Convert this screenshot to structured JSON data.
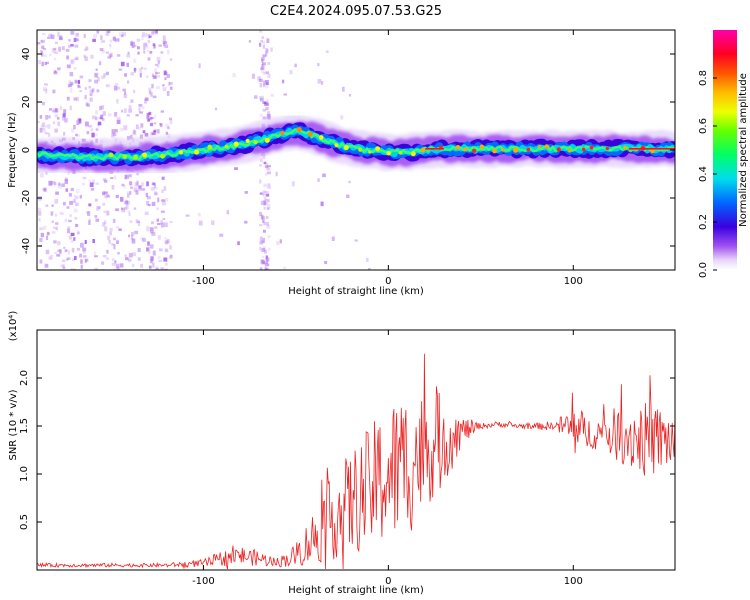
{
  "title": "C2E4.2024.095.07.53.G25",
  "colors": {
    "snr_line": "#ee2222",
    "frame": "#000000"
  },
  "chart_data": [
    {
      "type": "heatmap",
      "title": "C2E4.2024.095.07.53.G25",
      "xlabel": "Height of straight line (km)",
      "ylabel": "Frequency (Hz)",
      "xlim": [
        -190,
        155
      ],
      "ylim": [
        -50,
        50
      ],
      "x_ticks": [
        "-100",
        "0",
        "100"
      ],
      "y_ticks": [
        "-40",
        "-20",
        "0",
        "20",
        "40"
      ],
      "colorbar": {
        "label": "Normalized spectral amplitude",
        "range": [
          0.0,
          1.0
        ],
        "ticks": [
          "0.0",
          "0.2",
          "0.4",
          "0.6",
          "0.8"
        ],
        "colormap": "rainbow (white-violet-blue-cyan-green-yellow-orange-red-magenta)"
      },
      "center_frequency_trace": {
        "x": [
          -190,
          -160,
          -140,
          -120,
          -100,
          -80,
          -60,
          -50,
          -40,
          -30,
          -20,
          -10,
          0,
          10,
          20,
          30,
          40,
          60,
          80,
          100,
          120,
          140,
          155
        ],
        "y": [
          -2,
          -3,
          -3,
          -2,
          0,
          2,
          6,
          8,
          6,
          3,
          1,
          0,
          -1,
          -1,
          0,
          0.5,
          0.5,
          0.5,
          0.5,
          0.5,
          0.5,
          0.5,
          0.5
        ]
      },
      "grid": false
    },
    {
      "type": "line",
      "xlabel": "Height of straight line (km)",
      "ylabel": "SNR (10 * v/v)",
      "y_multiplier": "(x10⁴)",
      "xlim": [
        -190,
        155
      ],
      "ylim": [
        0,
        2.5
      ],
      "x_ticks": [
        "-100",
        "0",
        "100"
      ],
      "y_ticks": [
        "0.5",
        "1.0",
        "1.5",
        "2.0"
      ],
      "envelope": {
        "x": [
          -190,
          -150,
          -120,
          -100,
          -90,
          -80,
          -70,
          -60,
          -50,
          -40,
          -30,
          -20,
          -10,
          0,
          10,
          20,
          30,
          40,
          50,
          60,
          70,
          80,
          85,
          90,
          95,
          100,
          110,
          120,
          130,
          140,
          155
        ],
        "mean": [
          0.05,
          0.05,
          0.05,
          0.07,
          0.12,
          0.15,
          0.12,
          0.08,
          0.15,
          0.35,
          0.55,
          0.7,
          0.85,
          1.0,
          1.1,
          1.25,
          1.35,
          1.45,
          1.5,
          1.52,
          1.5,
          1.5,
          1.5,
          1.5,
          1.5,
          1.45,
          1.42,
          1.42,
          1.4,
          1.35,
          1.35
        ],
        "spread": [
          0.02,
          0.02,
          0.02,
          0.04,
          0.08,
          0.1,
          0.08,
          0.05,
          0.12,
          0.3,
          0.45,
          0.55,
          0.65,
          0.75,
          0.8,
          0.6,
          0.5,
          0.15,
          0.03,
          0.03,
          0.03,
          0.03,
          0.05,
          0.03,
          0.15,
          0.3,
          0.15,
          0.25,
          0.35,
          0.4,
          0.3
        ]
      },
      "grid": false,
      "legend": "none"
    }
  ]
}
